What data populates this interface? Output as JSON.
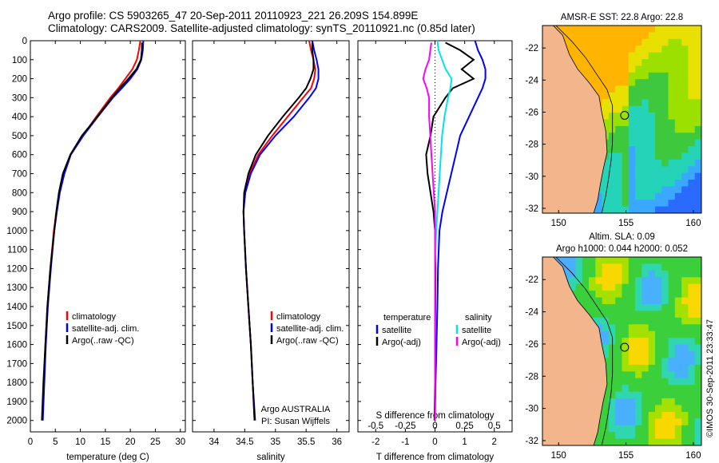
{
  "header": {
    "title_line1": "Argo profile: CS 5903265_47 20-Sep-2011 20110923_221 26.209S 154.899E",
    "title_line2": "Climatology: CARS2009. Satellite-adjusted climatology: synTS_20110921.nc (0.85d later)"
  },
  "colors": {
    "climatology": "#ff0000",
    "satellite": "#0000ff",
    "argo": "#000000",
    "sat_salinity": "#00e5e5",
    "argo_salinity": "#ff00ff",
    "land": "#f2b58c"
  },
  "stamp": "©IMOS 30-Sep-2011 23:33:47",
  "chart_data": [
    {
      "id": "temperature",
      "type": "line",
      "xlabel": "temperature (deg C)",
      "ylabel": "",
      "xlim": [
        0,
        31
      ],
      "ylim": [
        2060,
        0
      ],
      "xticks": [
        "0",
        "5",
        "10",
        "15",
        "20",
        "25",
        "30"
      ],
      "yticks": [
        "0",
        "100",
        "200",
        "300",
        "400",
        "500",
        "600",
        "700",
        "800",
        "900",
        "1000",
        "1100",
        "1200",
        "1300",
        "1400",
        "1500",
        "1600",
        "1700",
        "1800",
        "1900",
        "2000"
      ],
      "legend": [
        "climatology",
        "satellite-adj. clim.",
        "Argo(..raw -QC)"
      ],
      "series": [
        {
          "name": "climatology",
          "color": "climatology",
          "depth": [
            0,
            50,
            100,
            150,
            200,
            250,
            300,
            400,
            500,
            600,
            700,
            800,
            900,
            1000,
            1200,
            1400,
            1600,
            1800,
            2000
          ],
          "values": [
            22.0,
            21.7,
            21.3,
            20.4,
            19.0,
            17.6,
            16.0,
            13.2,
            10.5,
            8.0,
            6.7,
            5.8,
            5.2,
            4.7,
            4.0,
            3.4,
            3.0,
            2.7,
            2.4
          ]
        },
        {
          "name": "satellite-adj. clim.",
          "color": "satellite",
          "depth": [
            0,
            50,
            100,
            150,
            200,
            250,
            300,
            400,
            500,
            600,
            700,
            800,
            900,
            1000,
            1200,
            1400,
            1600,
            1800,
            2000
          ],
          "values": [
            22.6,
            22.5,
            22.2,
            21.4,
            20.0,
            18.3,
            16.5,
            13.5,
            10.6,
            8.1,
            6.8,
            5.9,
            5.3,
            4.8,
            4.1,
            3.5,
            3.1,
            2.8,
            2.5
          ]
        },
        {
          "name": "Argo(..raw -QC)",
          "color": "argo",
          "depth": [
            10,
            50,
            100,
            150,
            200,
            250,
            300,
            400,
            500,
            600,
            700,
            800,
            900,
            1000,
            1200,
            1400,
            1600,
            1800,
            2000
          ],
          "values": [
            22.3,
            22.3,
            22.1,
            21.2,
            19.6,
            17.9,
            16.3,
            13.4,
            10.3,
            8.0,
            6.5,
            5.7,
            5.2,
            4.8,
            4.0,
            3.4,
            3.0,
            2.6,
            2.3
          ]
        }
      ]
    },
    {
      "id": "salinity",
      "type": "line",
      "xlabel": "salinity",
      "ylabel": "",
      "xlim": [
        33.65,
        36.2
      ],
      "ylim": [
        2060,
        0
      ],
      "xticks": [
        "34",
        "34.5",
        "35",
        "35.5",
        "36"
      ],
      "legend": [
        "climatology",
        "satellite-adj. clim.",
        "Argo(..raw -QC)"
      ],
      "annotation": [
        "Argo AUSTRALIA",
        "PI: Susan Wijffels"
      ],
      "series": [
        {
          "name": "climatology",
          "color": "climatology",
          "depth": [
            0,
            50,
            100,
            150,
            200,
            250,
            300,
            400,
            500,
            600,
            700,
            800,
            900,
            1000,
            1200,
            1400,
            1600,
            1800,
            2000
          ],
          "values": [
            35.55,
            35.58,
            35.62,
            35.65,
            35.63,
            35.58,
            35.45,
            35.2,
            34.95,
            34.72,
            34.58,
            34.5,
            34.48,
            34.49,
            34.52,
            34.56,
            34.6,
            34.63,
            34.66
          ]
        },
        {
          "name": "satellite-adj. clim.",
          "color": "satellite",
          "depth": [
            0,
            50,
            100,
            150,
            200,
            250,
            300,
            400,
            500,
            600,
            700,
            800,
            900,
            1000,
            1200,
            1400,
            1600,
            1800,
            2000
          ],
          "values": [
            35.6,
            35.63,
            35.67,
            35.7,
            35.7,
            35.66,
            35.55,
            35.3,
            35.0,
            34.75,
            34.6,
            34.51,
            34.48,
            34.49,
            34.52,
            34.56,
            34.6,
            34.63,
            34.67
          ]
        },
        {
          "name": "Argo(..raw -QC)",
          "color": "argo",
          "depth": [
            10,
            50,
            100,
            150,
            200,
            250,
            300,
            400,
            500,
            600,
            700,
            800,
            900,
            1000,
            1200,
            1400,
            1600,
            1800,
            2000
          ],
          "values": [
            35.6,
            35.6,
            35.62,
            35.62,
            35.57,
            35.5,
            35.38,
            35.12,
            34.88,
            34.68,
            34.56,
            34.49,
            34.48,
            34.49,
            34.52,
            34.56,
            34.6,
            34.63,
            34.66
          ]
        }
      ]
    },
    {
      "id": "difference",
      "type": "line",
      "xlabel": "T difference from climatology",
      "secondary_xlabel": "S difference from climatology",
      "xlim": [
        -2.6,
        2.6
      ],
      "ylim": [
        2060,
        0
      ],
      "xticks": [
        "-2",
        "-1",
        "0",
        "1",
        "2"
      ],
      "secondary_xticks": [
        "-0.5",
        "-0.25",
        "0",
        "0.25",
        "0.5"
      ],
      "legend_groups": [
        {
          "heading": "temperature",
          "entries": [
            "satellite",
            "Argo(-adj)"
          ]
        },
        {
          "heading": "salinity",
          "entries": [
            "satellite",
            "Argo(-adj)"
          ]
        }
      ],
      "series": [
        {
          "name": "temperature satellite",
          "color": "satellite",
          "depth": [
            0,
            50,
            100,
            150,
            200,
            250,
            300,
            400,
            500,
            600,
            700,
            800,
            900,
            1000,
            1200,
            1400,
            1600,
            1800,
            2000
          ],
          "values": [
            1.35,
            1.45,
            1.6,
            1.7,
            1.7,
            1.6,
            1.45,
            1.15,
            0.85,
            0.7,
            0.55,
            0.4,
            0.25,
            0.15,
            0.1,
            0.08,
            0.05,
            0.02,
            0.0
          ]
        },
        {
          "name": "temperature Argo(-adj)",
          "color": "argo",
          "depth": [
            10,
            50,
            100,
            150,
            200,
            250,
            300,
            400,
            500,
            600,
            700,
            800,
            900,
            1000,
            1200,
            1400,
            1600,
            1800,
            2000
          ],
          "values": [
            0.35,
            0.85,
            1.3,
            0.9,
            1.3,
            0.6,
            0.35,
            -0.05,
            -0.15,
            -0.3,
            -0.25,
            -0.15,
            -0.05,
            0.0,
            0.02,
            0.01,
            0.0,
            0.0,
            -0.02
          ]
        },
        {
          "name": "salinity satellite",
          "color": "sat_salinity",
          "depth": [
            0,
            50,
            100,
            150,
            200,
            250,
            300,
            400,
            500,
            600,
            700,
            800,
            900,
            1000,
            1200,
            1400,
            1600,
            1800,
            2000
          ],
          "values": [
            0.02,
            0.03,
            0.06,
            0.09,
            0.14,
            0.13,
            0.11,
            0.08,
            0.06,
            0.05,
            0.04,
            0.03,
            0.02,
            0.01,
            0.0,
            0.0,
            0.0,
            0.0,
            0.0
          ]
        },
        {
          "name": "salinity Argo(-adj)",
          "color": "argo_salinity",
          "depth": [
            10,
            50,
            100,
            150,
            200,
            250,
            300,
            400,
            500,
            600,
            700,
            800,
            900,
            1000,
            1200,
            1400,
            1600,
            1800,
            2000
          ],
          "values": [
            -0.03,
            -0.04,
            -0.05,
            -0.08,
            -0.1,
            -0.07,
            -0.05,
            -0.05,
            -0.04,
            -0.03,
            -0.02,
            -0.01,
            0.0,
            0.0,
            0.0,
            0.0,
            0.0,
            0.0,
            0.0
          ]
        }
      ]
    },
    {
      "id": "sst_map",
      "type": "heatmap",
      "title": "AMSR-E SST: 22.8 Argo: 22.8",
      "xlim": [
        148.8,
        160.6
      ],
      "ylim": [
        -32.3,
        -20.6
      ],
      "xticks": [
        "150",
        "155",
        "160"
      ],
      "yticks": [
        "-22",
        "-24",
        "-26",
        "-28",
        "-30",
        "-32"
      ],
      "marker": {
        "lon": 154.9,
        "lat": -26.2
      }
    },
    {
      "id": "sla_map",
      "type": "heatmap",
      "title_lines": [
        "Altim. SLA: 0.09",
        "Argo h1000: 0.044 h2000: 0.052"
      ],
      "xlim": [
        148.8,
        160.6
      ],
      "ylim": [
        -32.3,
        -20.6
      ],
      "xticks": [
        "150",
        "155",
        "160"
      ],
      "yticks": [
        "-22",
        "-24",
        "-26",
        "-28",
        "-30",
        "-32"
      ],
      "marker": {
        "lon": 154.9,
        "lat": -26.2
      }
    }
  ]
}
